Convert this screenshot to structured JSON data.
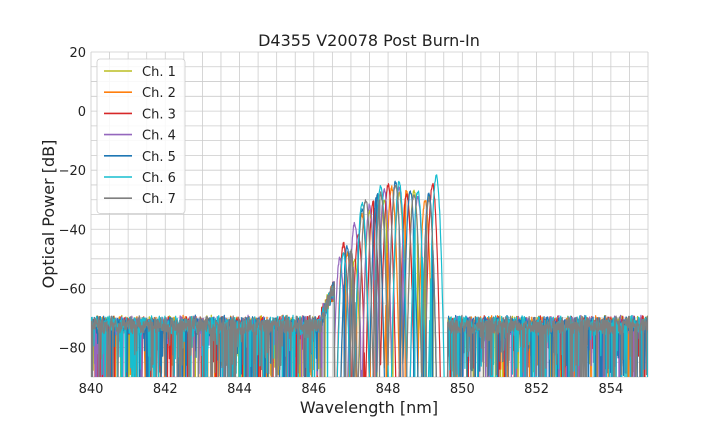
{
  "chart_data": {
    "type": "line",
    "title": "D4355 V20078 Post Burn-In",
    "xlabel": "Wavelength [nm]",
    "ylabel": "Optical Power [dB]",
    "xlim": [
      840,
      855
    ],
    "ylim": [
      -90,
      20
    ],
    "x_ticks": [
      840,
      842,
      844,
      846,
      848,
      850,
      852,
      854
    ],
    "y_ticks": [
      20,
      0,
      -20,
      -40,
      -60,
      -80
    ],
    "grid": true,
    "grid_minor": true,
    "legend_position": "top-left",
    "noise_floor_db": -70,
    "passband_nm": [
      846.2,
      849.6
    ],
    "series": [
      {
        "name": "Ch. 1",
        "color": "#bcbd22",
        "peaks": [
          {
            "x": 847.1,
            "y": -50
          },
          {
            "x": 847.5,
            "y": -34
          },
          {
            "x": 847.9,
            "y": -30
          },
          {
            "x": 848.3,
            "y": -28
          },
          {
            "x": 848.7,
            "y": -27
          },
          {
            "x": 849.1,
            "y": -29
          }
        ]
      },
      {
        "name": "Ch. 2",
        "color": "#ff7f0e",
        "peaks": [
          {
            "x": 846.9,
            "y": -48
          },
          {
            "x": 847.3,
            "y": -35
          },
          {
            "x": 847.7,
            "y": -29
          },
          {
            "x": 848.1,
            "y": -26
          },
          {
            "x": 848.5,
            "y": -27
          },
          {
            "x": 849.0,
            "y": -30
          }
        ]
      },
      {
        "name": "Ch. 3",
        "color": "#d62728",
        "peaks": [
          {
            "x": 846.8,
            "y": -45
          },
          {
            "x": 847.2,
            "y": -42
          },
          {
            "x": 847.6,
            "y": -31
          },
          {
            "x": 848.0,
            "y": -25
          },
          {
            "x": 848.5,
            "y": -28
          },
          {
            "x": 849.2,
            "y": -25
          }
        ]
      },
      {
        "name": "Ch. 4",
        "color": "#9467bd",
        "peaks": [
          {
            "x": 846.7,
            "y": -50
          },
          {
            "x": 847.1,
            "y": -38
          },
          {
            "x": 847.5,
            "y": -32
          },
          {
            "x": 847.9,
            "y": -27
          },
          {
            "x": 848.3,
            "y": -26
          },
          {
            "x": 848.8,
            "y": -29
          }
        ]
      },
      {
        "name": "Ch. 5",
        "color": "#1f77b4",
        "peaks": [
          {
            "x": 846.9,
            "y": -46
          },
          {
            "x": 847.3,
            "y": -33
          },
          {
            "x": 847.7,
            "y": -28
          },
          {
            "x": 848.2,
            "y": -24
          },
          {
            "x": 848.6,
            "y": -27
          },
          {
            "x": 849.1,
            "y": -28
          }
        ]
      },
      {
        "name": "Ch. 6",
        "color": "#17becf",
        "peaks": [
          {
            "x": 846.8,
            "y": -48
          },
          {
            "x": 847.3,
            "y": -31
          },
          {
            "x": 847.8,
            "y": -25
          },
          {
            "x": 848.3,
            "y": -24
          },
          {
            "x": 848.8,
            "y": -27
          },
          {
            "x": 849.3,
            "y": -22
          }
        ]
      },
      {
        "name": "Ch. 7",
        "color": "#7f7f7f",
        "peaks": [
          {
            "x": 847.0,
            "y": -47
          },
          {
            "x": 847.4,
            "y": -30
          },
          {
            "x": 847.8,
            "y": -28
          },
          {
            "x": 848.2,
            "y": -25
          },
          {
            "x": 848.7,
            "y": -28
          },
          {
            "x": 849.1,
            "y": -30
          }
        ]
      }
    ]
  }
}
